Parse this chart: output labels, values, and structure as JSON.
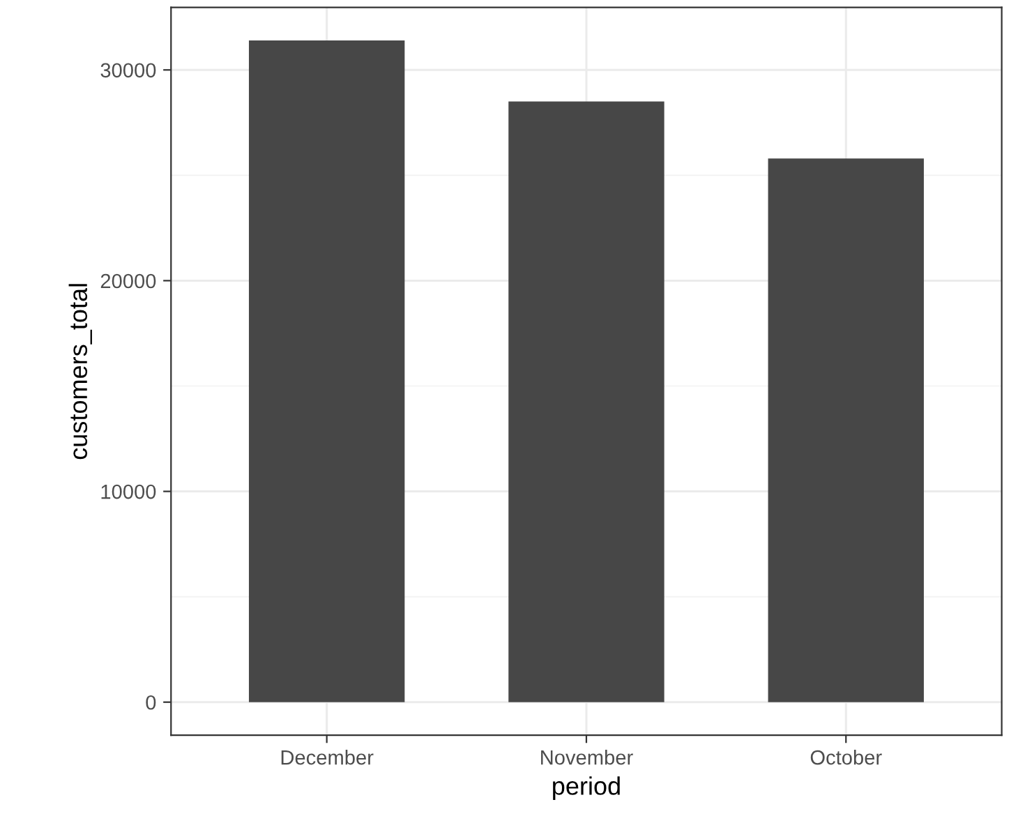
{
  "chart_data": {
    "type": "bar",
    "xlabel": "period",
    "ylabel": "customers_total",
    "categories": [
      "December",
      "November",
      "October"
    ],
    "values": [
      31400,
      28500,
      25800
    ],
    "color": "#474747",
    "ylim": [
      -1570,
      32970
    ],
    "yticks": [
      0,
      10000,
      20000,
      30000
    ],
    "grid": true
  }
}
